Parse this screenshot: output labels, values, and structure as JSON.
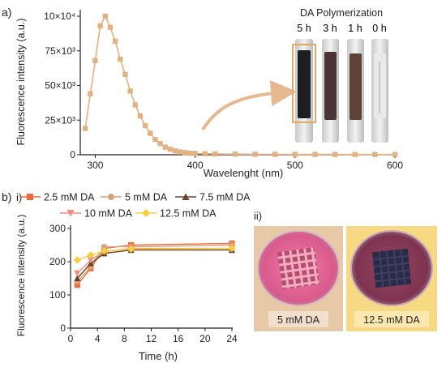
{
  "panel_a_letter": "a)",
  "panel_b_letter": "b)",
  "panel_b_sub_i": "i)",
  "panel_b_sub_ii": "ii)",
  "photo_a": {
    "title": "DA Polymerization",
    "vial_labels": [
      "5 h",
      "3 h",
      "1 h",
      "0 h"
    ]
  },
  "photo_b": {
    "label_left": "5 mM DA",
    "label_right": "12.5 mM DA"
  },
  "colors": {
    "spectrum": "#e2b282",
    "arrow": "#e6b88f",
    "s1": "#f26a3a",
    "s2": "#d9a27a",
    "s3": "#6b4326",
    "s4": "#ef8c84",
    "s5": "#f7cf3d",
    "box_left": "#e8c9a7",
    "box_right": "#f7d983"
  },
  "chart_data": [
    {
      "type": "scatter",
      "xlabel": "Wavelenght (nm)",
      "ylabel": "Fluorescence intensity (a.u.)",
      "xlim": [
        285,
        600
      ],
      "ylim": [
        0,
        100000
      ],
      "xticks": [
        "300",
        "400",
        "500",
        "600"
      ],
      "yticks": [
        "0",
        "25×10³",
        "50×10³",
        "75×10³",
        "10×10⁴"
      ],
      "series": [
        {
          "x": [
            290,
            295,
            300,
            305,
            310,
            315,
            320,
            325,
            330,
            335,
            340,
            345,
            350,
            355,
            360,
            365,
            370,
            375,
            380,
            385,
            390,
            395,
            400,
            410,
            420,
            440,
            460,
            480,
            500,
            520,
            540,
            560,
            580,
            600
          ],
          "y": [
            19000,
            44000,
            68000,
            93000,
            100000,
            92000,
            82000,
            69000,
            58000,
            46000,
            36000,
            28000,
            21000,
            15500,
            11000,
            8000,
            5500,
            4000,
            2800,
            2000,
            1500,
            1100,
            900,
            700,
            550,
            420,
            350,
            300,
            260,
            230,
            210,
            190,
            180,
            170
          ]
        }
      ]
    },
    {
      "type": "line",
      "xlabel": "Time (h)",
      "ylabel": "Fluorescence intensity (a.u.)",
      "xlim": [
        0,
        24
      ],
      "ylim": [
        0,
        300
      ],
      "xticks": [
        "0",
        "4",
        "8",
        "12",
        "16",
        "20",
        "24"
      ],
      "yticks": [
        "0",
        "100",
        "200",
        "300"
      ],
      "legend": "top",
      "x": [
        1,
        3,
        5,
        9,
        24
      ],
      "series": [
        {
          "name": "2.5 mM DA",
          "marker": "square",
          "values": [
            130,
            180,
            240,
            250,
            255
          ]
        },
        {
          "name": "5 mM DA",
          "marker": "circle",
          "values": [
            140,
            185,
            245,
            245,
            250
          ]
        },
        {
          "name": "7.5 mM DA",
          "marker": "triangle-up",
          "values": [
            150,
            195,
            225,
            235,
            235
          ]
        },
        {
          "name": "10 mM DA",
          "marker": "triangle-down",
          "values": [
            165,
            205,
            230,
            240,
            240
          ]
        },
        {
          "name": "12.5 mM DA",
          "marker": "diamond",
          "values": [
            205,
            220,
            232,
            238,
            240
          ]
        }
      ]
    }
  ]
}
